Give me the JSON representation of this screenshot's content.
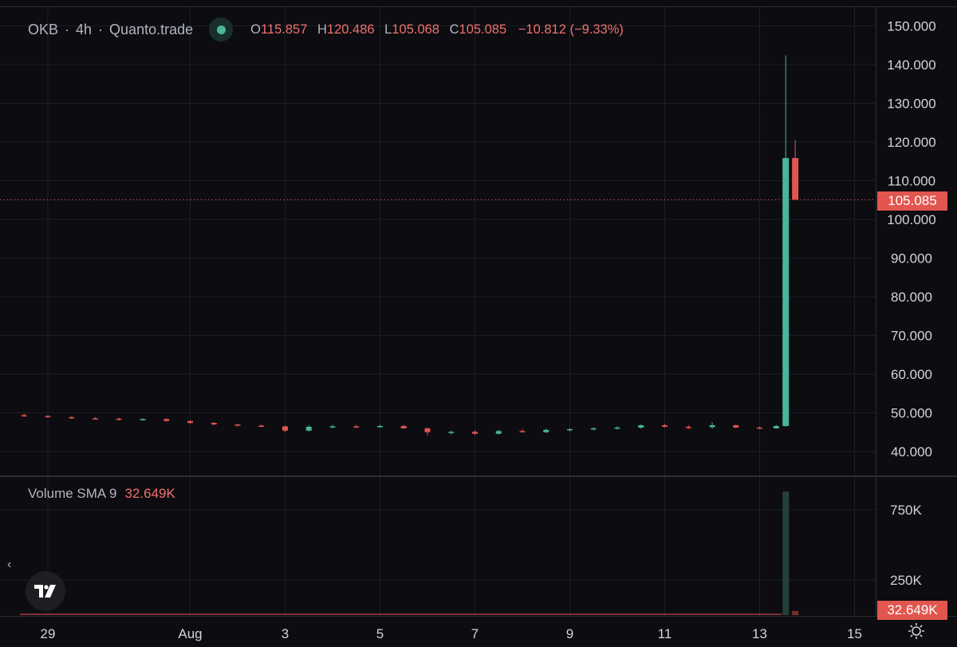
{
  "header": {
    "symbol": "OKB",
    "interval": "4h",
    "exchange": "Quanto.trade",
    "ohlc": {
      "o_label": "O",
      "o_value": "115.857",
      "h_label": "H",
      "h_value": "120.486",
      "l_label": "L",
      "l_value": "105.068",
      "c_label": "C",
      "c_value": "105.085",
      "change": "−10.812 (−9.33%)"
    }
  },
  "volume_legend": {
    "label": "Volume SMA 9",
    "value": "32.649K"
  },
  "price_tag": "105.085",
  "volume_tag": "32.649K",
  "icons": {
    "logo": "tradingview-logo-icon",
    "collapse": "chevron-left-icon",
    "settings": "settings-gear-icon",
    "status": "market-status-dot-icon"
  },
  "colors": {
    "up": "#4ab59b",
    "down": "#e2564f",
    "background": "#0c0c11",
    "grid": "#1c1f27"
  },
  "chart_data": {
    "type": "candlestick",
    "price_axis": {
      "ticks": [
        {
          "v": 40,
          "label": "40.000"
        },
        {
          "v": 50,
          "label": "50.000"
        },
        {
          "v": 60,
          "label": "60.000"
        },
        {
          "v": 70,
          "label": "70.000"
        },
        {
          "v": 80,
          "label": "80.000"
        },
        {
          "v": 90,
          "label": "90.000"
        },
        {
          "v": 100,
          "label": "100.000"
        },
        {
          "v": 110,
          "label": "110.000"
        },
        {
          "v": 120,
          "label": "120.000"
        },
        {
          "v": 130,
          "label": "130.000"
        },
        {
          "v": 140,
          "label": "140.000"
        },
        {
          "v": 150,
          "label": "150.000"
        }
      ],
      "last_price": 105.085
    },
    "volume_axis": {
      "ticks": [
        {
          "v": 250000,
          "label": "250K"
        },
        {
          "v": 750000,
          "label": "750K"
        }
      ],
      "sma9": 32649
    },
    "time_axis": {
      "ticks": [
        {
          "d": 0,
          "label": "29"
        },
        {
          "d": 3,
          "label": "Aug"
        },
        {
          "d": 5,
          "label": "3"
        },
        {
          "d": 7,
          "label": "5"
        },
        {
          "d": 9,
          "label": "7"
        },
        {
          "d": 11,
          "label": "9"
        },
        {
          "d": 13,
          "label": "11"
        },
        {
          "d": 15,
          "label": "13"
        },
        {
          "d": 17,
          "label": "15"
        }
      ]
    },
    "series": [
      {
        "name": "OKB",
        "candles": [
          {
            "d": -0.5,
            "o": 49.4,
            "h": 49.8,
            "l": 49.0,
            "c": 49.2
          },
          {
            "d": 0.0,
            "o": 49.2,
            "h": 49.4,
            "l": 48.7,
            "c": 48.9
          },
          {
            "d": 0.5,
            "o": 48.9,
            "h": 49.1,
            "l": 48.4,
            "c": 48.6
          },
          {
            "d": 1.0,
            "o": 48.6,
            "h": 48.9,
            "l": 48.3,
            "c": 48.5
          },
          {
            "d": 1.5,
            "o": 48.5,
            "h": 48.7,
            "l": 48.0,
            "c": 48.2
          },
          {
            "d": 2.0,
            "o": 48.2,
            "h": 48.6,
            "l": 48.0,
            "c": 48.4
          },
          {
            "d": 2.5,
            "o": 48.4,
            "h": 48.6,
            "l": 47.7,
            "c": 47.9
          },
          {
            "d": 3.0,
            "o": 47.9,
            "h": 48.1,
            "l": 47.2,
            "c": 47.4
          },
          {
            "d": 3.5,
            "o": 47.4,
            "h": 47.6,
            "l": 46.8,
            "c": 47.0
          },
          {
            "d": 4.0,
            "o": 47.0,
            "h": 47.2,
            "l": 46.5,
            "c": 46.7
          },
          {
            "d": 4.5,
            "o": 46.7,
            "h": 47.0,
            "l": 46.3,
            "c": 46.5
          },
          {
            "d": 5.0,
            "o": 46.5,
            "h": 46.7,
            "l": 45.0,
            "c": 45.4
          },
          {
            "d": 5.5,
            "o": 45.4,
            "h": 46.8,
            "l": 45.2,
            "c": 46.4
          },
          {
            "d": 6.0,
            "o": 46.4,
            "h": 46.9,
            "l": 46.0,
            "c": 46.5
          },
          {
            "d": 6.5,
            "o": 46.5,
            "h": 46.9,
            "l": 46.1,
            "c": 46.3
          },
          {
            "d": 7.0,
            "o": 46.3,
            "h": 46.9,
            "l": 46.1,
            "c": 46.6
          },
          {
            "d": 7.5,
            "o": 46.6,
            "h": 46.9,
            "l": 45.9,
            "c": 46.0
          },
          {
            "d": 8.0,
            "o": 46.0,
            "h": 46.2,
            "l": 44.2,
            "c": 45.0
          },
          {
            "d": 8.5,
            "o": 45.0,
            "h": 45.4,
            "l": 44.4,
            "c": 45.1
          },
          {
            "d": 9.0,
            "o": 45.1,
            "h": 45.5,
            "l": 44.3,
            "c": 44.6
          },
          {
            "d": 9.5,
            "o": 44.6,
            "h": 45.6,
            "l": 44.4,
            "c": 45.3
          },
          {
            "d": 10.0,
            "o": 45.3,
            "h": 45.8,
            "l": 44.9,
            "c": 45.0
          },
          {
            "d": 10.5,
            "o": 45.0,
            "h": 45.9,
            "l": 44.8,
            "c": 45.6
          },
          {
            "d": 11.0,
            "o": 45.6,
            "h": 46.0,
            "l": 45.2,
            "c": 45.8
          },
          {
            "d": 11.5,
            "o": 45.8,
            "h": 46.3,
            "l": 45.5,
            "c": 46.0
          },
          {
            "d": 12.0,
            "o": 46.0,
            "h": 46.6,
            "l": 45.7,
            "c": 46.2
          },
          {
            "d": 12.5,
            "o": 46.2,
            "h": 47.0,
            "l": 45.9,
            "c": 46.8
          },
          {
            "d": 13.0,
            "o": 46.8,
            "h": 47.2,
            "l": 46.2,
            "c": 46.4
          },
          {
            "d": 13.5,
            "o": 46.4,
            "h": 46.8,
            "l": 45.8,
            "c": 46.3
          },
          {
            "d": 14.0,
            "o": 46.3,
            "h": 47.5,
            "l": 46.0,
            "c": 46.8
          },
          {
            "d": 14.5,
            "o": 46.8,
            "h": 47.0,
            "l": 46.0,
            "c": 46.2
          },
          {
            "d": 15.0,
            "o": 46.2,
            "h": 46.5,
            "l": 45.8,
            "c": 46.0
          },
          {
            "d": 15.35,
            "o": 46.0,
            "h": 46.9,
            "l": 45.9,
            "c": 46.6
          },
          {
            "d": 15.55,
            "o": 46.6,
            "h": 142.4,
            "l": 46.4,
            "c": 115.857
          },
          {
            "d": 15.75,
            "o": 115.857,
            "h": 120.486,
            "l": 105.068,
            "c": 105.085
          }
        ],
        "volume": [
          {
            "d": 15.55,
            "v": 880000,
            "dir": "up"
          },
          {
            "d": 15.75,
            "v": 30000,
            "dir": "down"
          }
        ]
      }
    ]
  }
}
